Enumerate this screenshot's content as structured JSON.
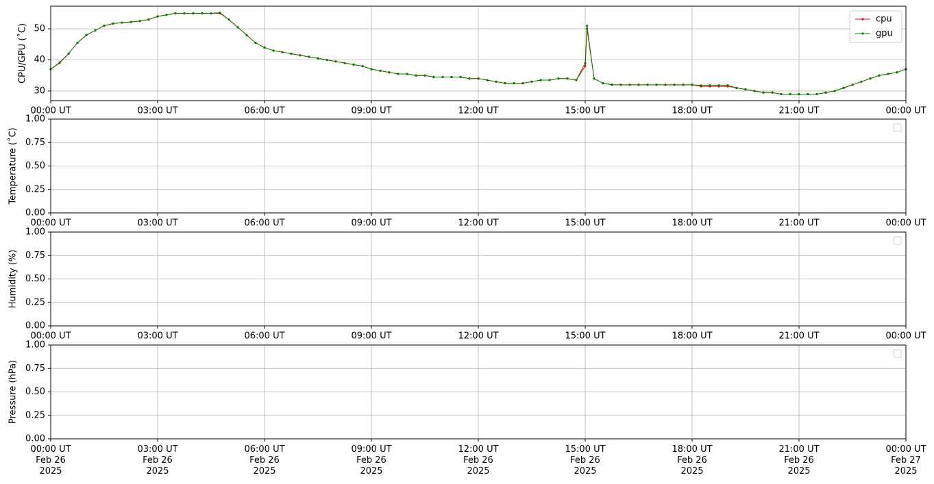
{
  "chart_data": [
    {
      "type": "line",
      "ylabel": "CPU/GPU (˚C)",
      "grid": true,
      "legend": "upper right",
      "x": [
        0,
        0.25,
        0.5,
        0.75,
        1,
        1.25,
        1.5,
        1.75,
        2,
        2.25,
        2.5,
        2.75,
        3,
        3.25,
        3.5,
        3.75,
        4,
        4.25,
        4.5,
        4.75,
        5,
        5.25,
        5.5,
        5.75,
        6,
        6.25,
        6.5,
        6.75,
        7,
        7.25,
        7.5,
        7.75,
        8,
        8.25,
        8.5,
        8.75,
        9,
        9.25,
        9.5,
        9.75,
        10,
        10.25,
        10.5,
        10.75,
        11,
        11.25,
        11.5,
        11.75,
        12,
        12.25,
        12.5,
        12.75,
        13,
        13.25,
        13.5,
        13.75,
        14,
        14.25,
        14.5,
        14.75,
        15,
        15.05,
        15.25,
        15.5,
        15.75,
        16,
        16.25,
        16.5,
        16.75,
        17,
        17.25,
        17.5,
        17.75,
        18,
        18.25,
        18.5,
        18.75,
        19,
        19.25,
        19.5,
        19.75,
        20,
        20.25,
        20.5,
        20.75,
        21,
        21.25,
        21.5,
        21.75,
        22,
        22.25,
        22.5,
        22.75,
        23,
        23.25,
        23.5,
        23.75,
        24
      ],
      "series": [
        {
          "name": "cpu",
          "color": "#ff0000",
          "values": [
            37,
            39,
            42,
            45.5,
            48,
            49.5,
            51,
            51.7,
            52,
            52.2,
            52.5,
            53,
            54,
            54.5,
            55,
            55,
            55,
            55,
            55,
            55,
            53,
            50.5,
            48,
            45.5,
            44,
            43,
            42.5,
            42,
            41.5,
            41,
            40.5,
            40,
            39.5,
            39,
            38.5,
            38,
            37,
            36.5,
            36,
            35.5,
            35.5,
            35,
            35,
            34.5,
            34.5,
            34.5,
            34.5,
            34,
            34,
            33.5,
            33,
            32.5,
            32.5,
            32.5,
            33,
            33.5,
            33.5,
            34,
            34,
            33.5,
            38,
            50,
            34,
            32.5,
            32,
            32,
            32,
            32,
            32,
            32,
            32,
            32,
            32,
            32,
            31.5,
            31.5,
            31.5,
            31.5,
            31,
            30.5,
            30,
            29.5,
            29.5,
            29,
            29,
            29,
            29,
            29,
            29.5,
            30,
            31,
            32,
            33,
            34,
            35,
            35.5,
            36,
            37
          ]
        },
        {
          "name": "gpu",
          "color": "#008000",
          "values": [
            37,
            39.2,
            42,
            45.5,
            48,
            49.5,
            51,
            51.7,
            52,
            52.2,
            52.5,
            53,
            54,
            54.5,
            55,
            55,
            55,
            55,
            55,
            55.2,
            53,
            50.5,
            48,
            45.5,
            44,
            43,
            42.5,
            42,
            41.5,
            41,
            40.5,
            40,
            39.5,
            39,
            38.5,
            38,
            37,
            36.5,
            36,
            35.5,
            35.5,
            35,
            35,
            34.5,
            34.5,
            34.5,
            34.5,
            34,
            34,
            33.5,
            33,
            32.5,
            32.5,
            32.5,
            33,
            33.5,
            33.5,
            34,
            34,
            33.5,
            39,
            51,
            34,
            32.5,
            32,
            32,
            32,
            32,
            32,
            32,
            32,
            32,
            32,
            32,
            31.8,
            31.8,
            31.8,
            31.8,
            31,
            30.5,
            30,
            29.5,
            29.5,
            29,
            29,
            29,
            29,
            29,
            29.5,
            30,
            31,
            32,
            33,
            34,
            35,
            35.5,
            36,
            37
          ]
        }
      ],
      "xlim": [
        0,
        24
      ],
      "xticks": [
        {
          "value": 0,
          "label": "00:00 UT"
        },
        {
          "value": 3,
          "label": "03:00 UT"
        },
        {
          "value": 6,
          "label": "06:00 UT"
        },
        {
          "value": 9,
          "label": "09:00 UT"
        },
        {
          "value": 12,
          "label": "12:00 UT"
        },
        {
          "value": 15,
          "label": "15:00 UT"
        },
        {
          "value": 18,
          "label": "18:00 UT"
        },
        {
          "value": 21,
          "label": "21:00 UT"
        },
        {
          "value": 24,
          "label": "00:00 UT"
        }
      ],
      "ylim": [
        26.9,
        57.3
      ],
      "yticks": [
        30,
        40,
        50
      ]
    },
    {
      "type": "line",
      "ylabel": "Temperature (˚C)",
      "grid": true,
      "series": [],
      "xlim": [
        0,
        24
      ],
      "xticks": [
        {
          "value": 0,
          "label": "00:00 UT"
        },
        {
          "value": 3,
          "label": "03:00 UT"
        },
        {
          "value": 6,
          "label": "06:00 UT"
        },
        {
          "value": 9,
          "label": "09:00 UT"
        },
        {
          "value": 12,
          "label": "12:00 UT"
        },
        {
          "value": 15,
          "label": "15:00 UT"
        },
        {
          "value": 18,
          "label": "18:00 UT"
        },
        {
          "value": 21,
          "label": "21:00 UT"
        },
        {
          "value": 24,
          "label": "00:00 UT"
        }
      ],
      "ylim": [
        0,
        1
      ],
      "yticks": [
        {
          "value": 0,
          "label": "0.00"
        },
        {
          "value": 0.25,
          "label": "0.25"
        },
        {
          "value": 0.5,
          "label": "0.50"
        },
        {
          "value": 0.75,
          "label": "0.75"
        },
        {
          "value": 1,
          "label": "1.00"
        }
      ]
    },
    {
      "type": "line",
      "ylabel": "Humidity (%)",
      "grid": true,
      "series": [],
      "xlim": [
        0,
        24
      ],
      "xticks": [
        {
          "value": 0,
          "label": "00:00 UT"
        },
        {
          "value": 3,
          "label": "03:00 UT"
        },
        {
          "value": 6,
          "label": "06:00 UT"
        },
        {
          "value": 9,
          "label": "09:00 UT"
        },
        {
          "value": 12,
          "label": "12:00 UT"
        },
        {
          "value": 15,
          "label": "15:00 UT"
        },
        {
          "value": 18,
          "label": "18:00 UT"
        },
        {
          "value": 21,
          "label": "21:00 UT"
        },
        {
          "value": 24,
          "label": "00:00 UT"
        }
      ],
      "ylim": [
        0,
        1
      ],
      "yticks": [
        {
          "value": 0,
          "label": "0.00"
        },
        {
          "value": 0.25,
          "label": "0.25"
        },
        {
          "value": 0.5,
          "label": "0.50"
        },
        {
          "value": 0.75,
          "label": "0.75"
        },
        {
          "value": 1,
          "label": "1.00"
        }
      ]
    },
    {
      "type": "line",
      "ylabel": "Pressure (hPa)",
      "grid": true,
      "series": [],
      "xlim": [
        0,
        24
      ],
      "xticks": [
        {
          "value": 0,
          "label": "00:00 UT\nFeb 26\n2025"
        },
        {
          "value": 3,
          "label": "03:00 UT\nFeb 26\n2025"
        },
        {
          "value": 6,
          "label": "06:00 UT\nFeb 26\n2025"
        },
        {
          "value": 9,
          "label": "09:00 UT\nFeb 26\n2025"
        },
        {
          "value": 12,
          "label": "12:00 UT\nFeb 26\n2025"
        },
        {
          "value": 15,
          "label": "15:00 UT\nFeb 26\n2025"
        },
        {
          "value": 18,
          "label": "18:00 UT\nFeb 26\n2025"
        },
        {
          "value": 21,
          "label": "21:00 UT\nFeb 26\n2025"
        },
        {
          "value": 24,
          "label": "00:00 UT\nFeb 27\n2025"
        }
      ],
      "ylim": [
        0,
        1
      ],
      "yticks": [
        {
          "value": 0,
          "label": "0.00"
        },
        {
          "value": 0.25,
          "label": "0.25"
        },
        {
          "value": 0.5,
          "label": "0.50"
        },
        {
          "value": 0.75,
          "label": "0.75"
        },
        {
          "value": 1,
          "label": "1.00"
        }
      ]
    }
  ]
}
